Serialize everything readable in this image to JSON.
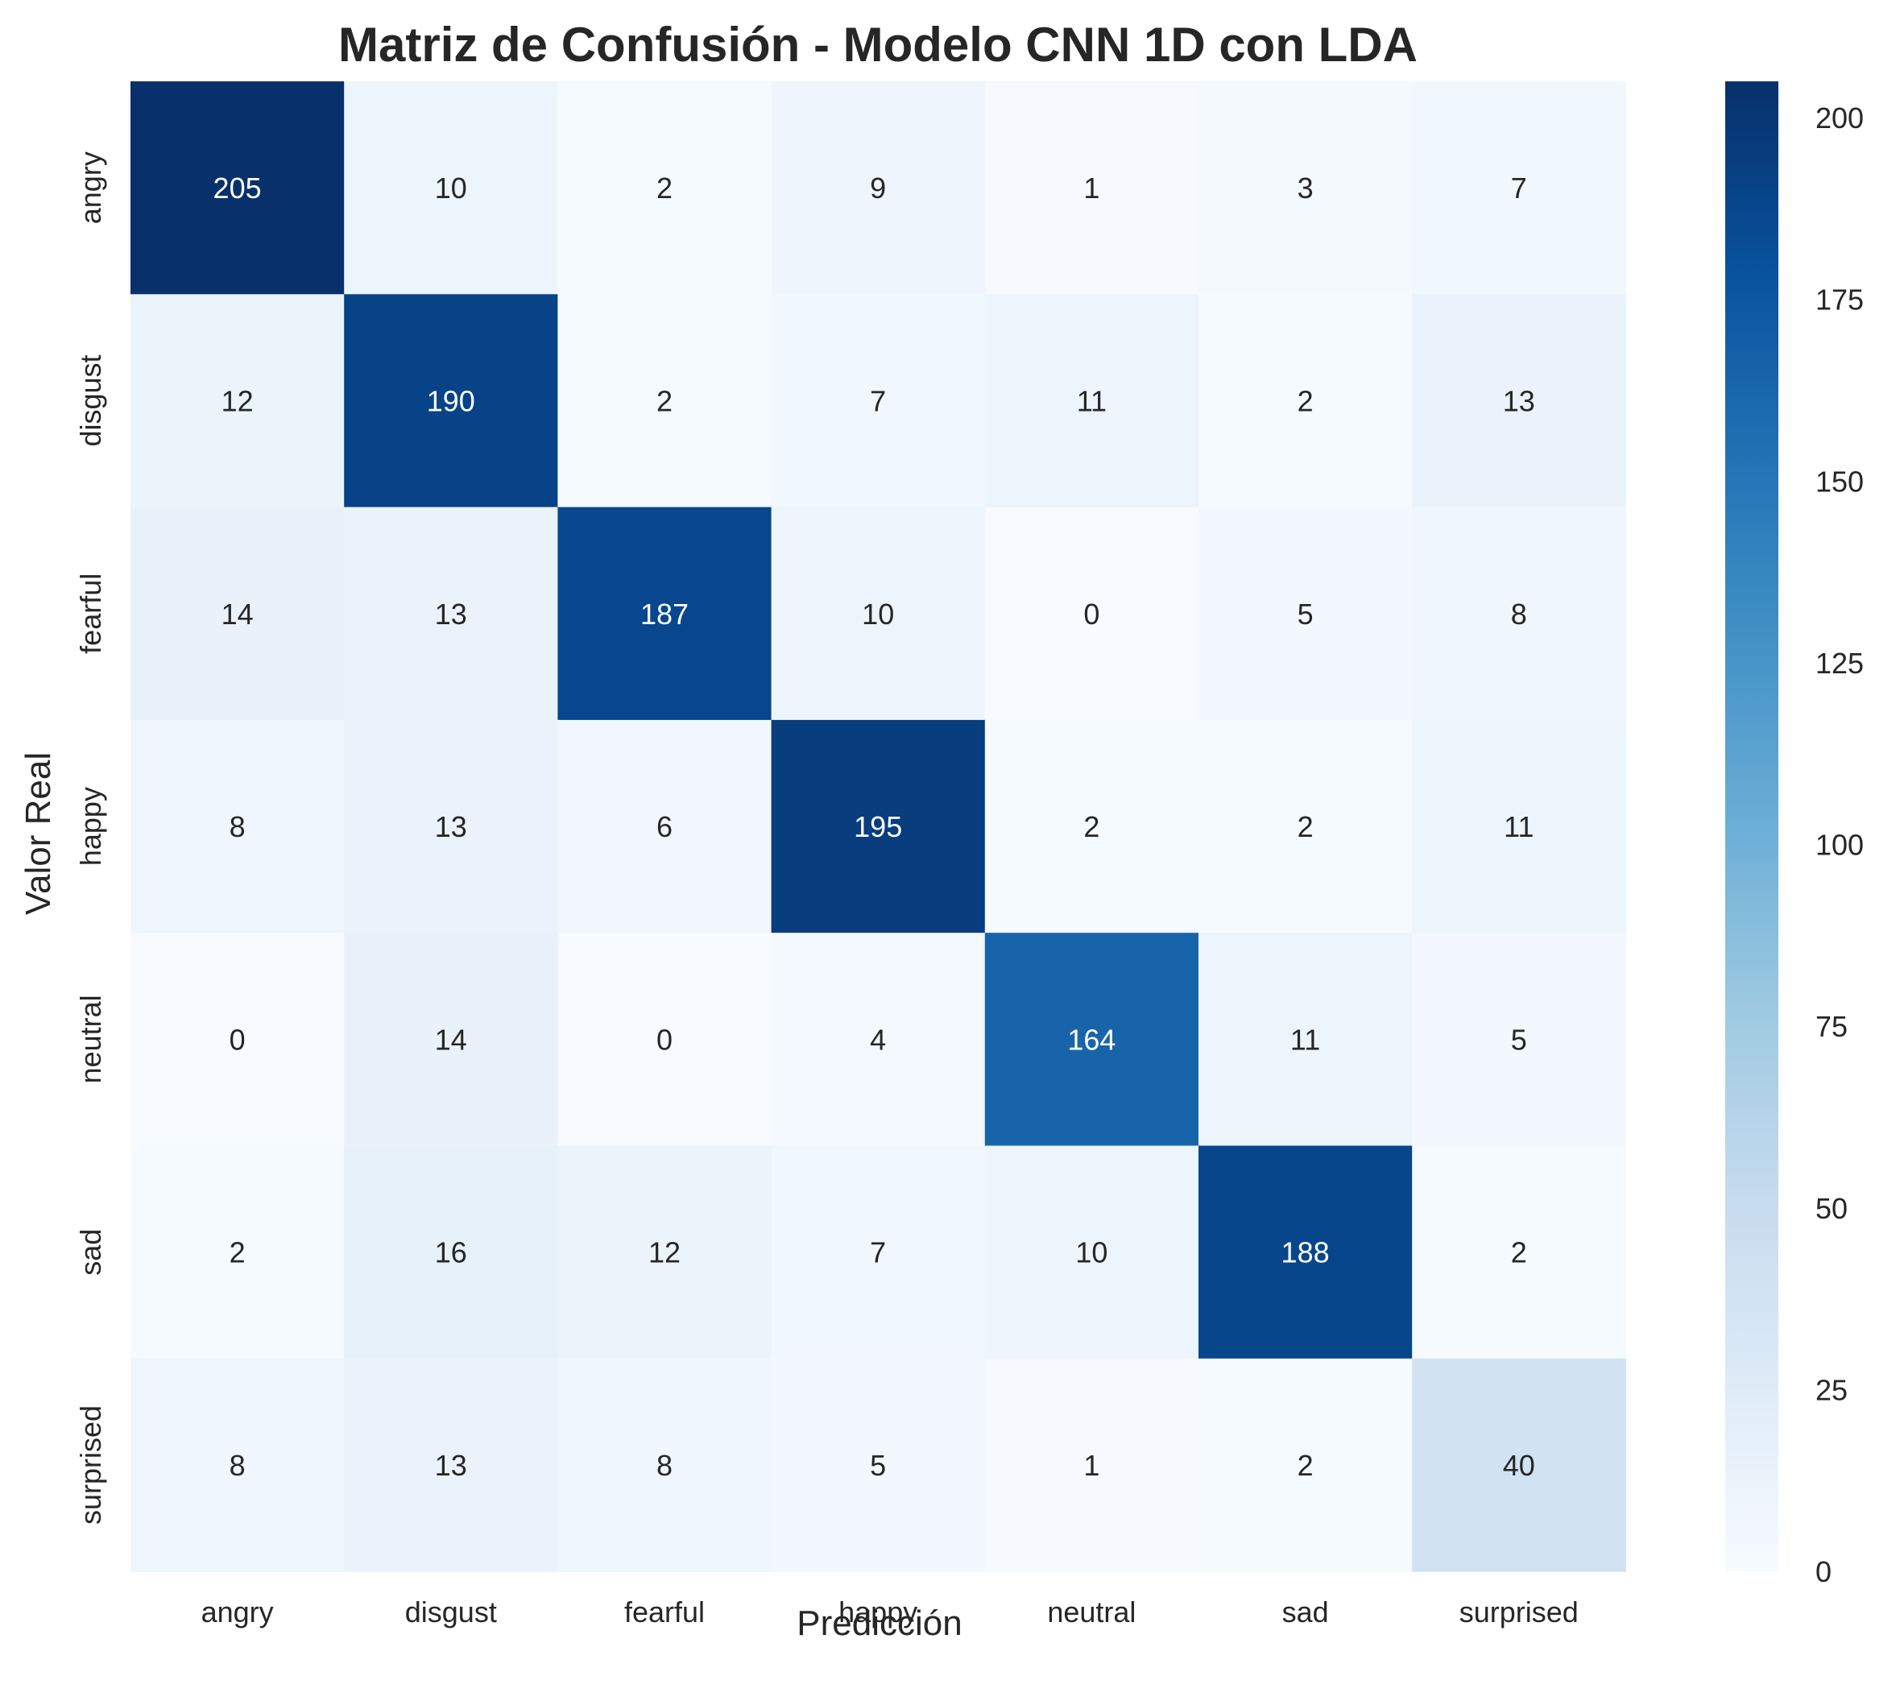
{
  "chart_data": {
    "type": "heatmap",
    "title": "Matriz de Confusión - Modelo CNN 1D con LDA",
    "xlabel": "Predicción",
    "ylabel": "Valor Real",
    "x_categories": [
      "angry",
      "disgust",
      "fearful",
      "happy",
      "neutral",
      "sad",
      "surprised"
    ],
    "y_categories": [
      "angry",
      "disgust",
      "fearful",
      "happy",
      "neutral",
      "sad",
      "surprised"
    ],
    "values": [
      [
        205,
        10,
        2,
        9,
        1,
        3,
        7
      ],
      [
        12,
        190,
        2,
        7,
        11,
        2,
        13
      ],
      [
        14,
        13,
        187,
        10,
        0,
        5,
        8
      ],
      [
        8,
        13,
        6,
        195,
        2,
        2,
        11
      ],
      [
        0,
        14,
        0,
        4,
        164,
        11,
        5
      ],
      [
        2,
        16,
        12,
        7,
        10,
        188,
        2
      ],
      [
        8,
        13,
        8,
        5,
        1,
        2,
        40
      ]
    ],
    "colormap": "Blues",
    "value_range": [
      0,
      205
    ],
    "colorbar_ticks": [
      0,
      25,
      50,
      75,
      100,
      125,
      150,
      175,
      200
    ],
    "grid": false
  }
}
